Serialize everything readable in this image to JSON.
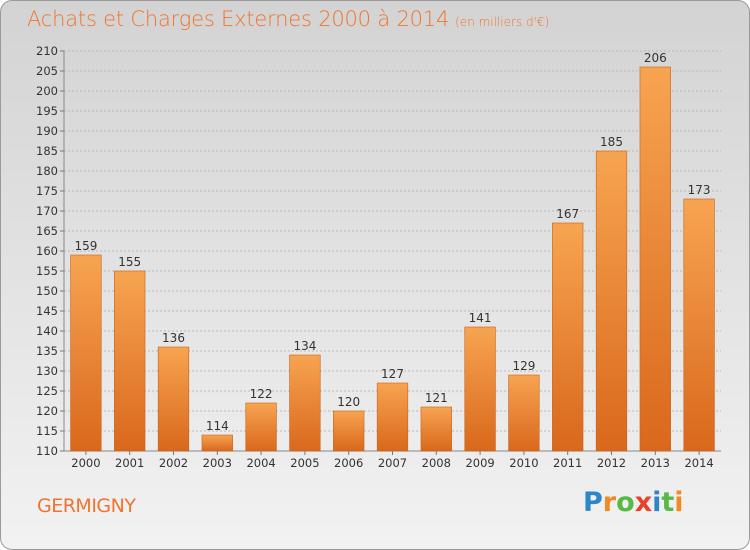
{
  "chart_data": {
    "type": "bar",
    "title": "Achats et Charges Externes 2000 à 2014",
    "subtitle": "(en milliers d'€)",
    "xlabel": "",
    "ylabel": "",
    "categories": [
      "2000",
      "2001",
      "2002",
      "2003",
      "2004",
      "2005",
      "2006",
      "2007",
      "2008",
      "2009",
      "2010",
      "2011",
      "2012",
      "2013",
      "2014"
    ],
    "values": [
      159,
      155,
      136,
      114,
      122,
      134,
      120,
      127,
      121,
      141,
      129,
      167,
      185,
      206,
      173
    ],
    "ylim": [
      110,
      210
    ],
    "yticks": [
      "110",
      "115",
      "120",
      "125",
      "130",
      "135",
      "140",
      "145",
      "150",
      "155",
      "160",
      "165",
      "170",
      "175",
      "180",
      "185",
      "190",
      "195",
      "200",
      "205",
      "210"
    ],
    "grid": true,
    "bar_color": "#f0742e"
  },
  "footer": {
    "commune": "GERMIGNY"
  },
  "brand": {
    "name": "Proxiti",
    "letters": [
      {
        "char": "P",
        "color": "#2e86c9"
      },
      {
        "char": "r",
        "color": "#f08a22"
      },
      {
        "char": "o",
        "color": "#58b947"
      },
      {
        "char": "x",
        "color": "#e8412c"
      },
      {
        "char": "i",
        "color": "#2e86c9"
      },
      {
        "char": "t",
        "color": "#58b947"
      },
      {
        "char": "i",
        "color": "#f08a22"
      }
    ]
  }
}
